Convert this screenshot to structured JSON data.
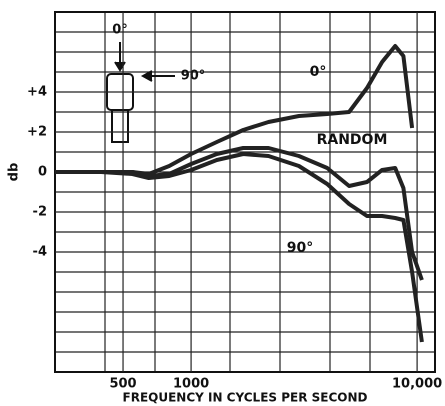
{
  "chart_data": {
    "type": "line",
    "log_x": true,
    "y_label": "db",
    "x_label": "FREQUENCY IN CYCLES PER SECOND",
    "x": [
      250,
      400,
      550,
      650,
      800,
      1000,
      1300,
      1700,
      2200,
      3000,
      4000,
      5000,
      6000,
      7000,
      8000,
      8700,
      9500,
      10500
    ],
    "series": [
      {
        "name": "0°",
        "color": "#222",
        "values": [
          0,
          0,
          0,
          -0.1,
          0.3,
          0.9,
          1.5,
          2.1,
          2.5,
          2.8,
          2.9,
          3.0,
          4.2,
          5.5,
          6.3,
          5.8,
          2.2,
          null
        ]
      },
      {
        "name": "RANDOM",
        "color": "#222",
        "values": [
          0,
          0,
          0,
          -0.2,
          -0.1,
          0.4,
          0.9,
          1.2,
          1.2,
          0.8,
          0.2,
          -0.7,
          -0.5,
          0.1,
          0.2,
          -0.8,
          -4,
          -5.4
        ]
      },
      {
        "name": "90°",
        "color": "#222",
        "values": [
          0,
          0,
          -0.1,
          -0.3,
          -0.2,
          0.1,
          0.6,
          0.9,
          0.8,
          0.3,
          -0.6,
          -1.6,
          -2.2,
          -2.2,
          -2.3,
          -2.4,
          -5,
          -8.5
        ]
      }
    ],
    "xlim": [
      250,
      12000
    ],
    "ylim": [
      -10,
      8
    ],
    "xticks": [
      500,
      1000,
      {
        "value": 10000,
        "label": "10,000"
      }
    ],
    "yticks": [
      {
        "value": 4,
        "label": "+4"
      },
      {
        "value": 2,
        "label": "+2"
      },
      0,
      -2,
      -4
    ],
    "icon_labels": {
      "top": "0°",
      "side": "90°"
    }
  }
}
